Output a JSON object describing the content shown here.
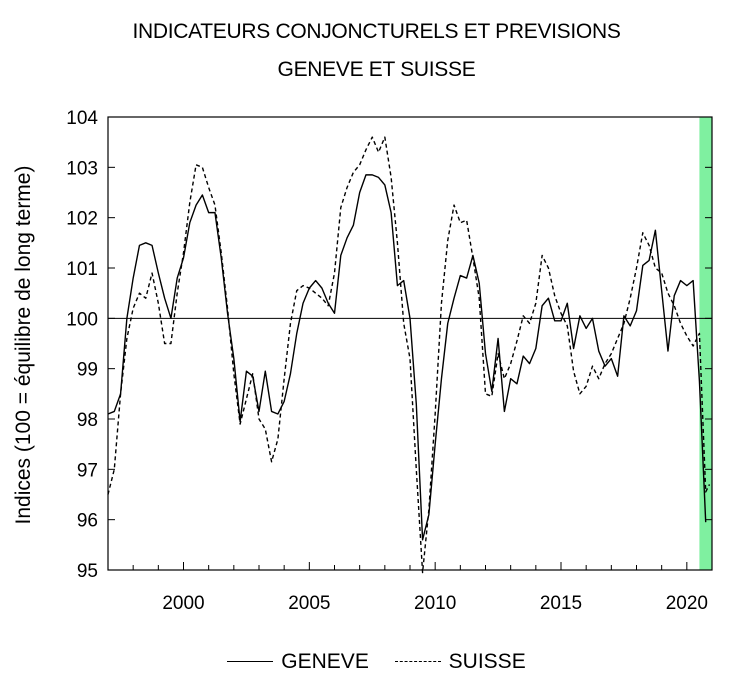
{
  "chart_data": {
    "type": "line",
    "title": "INDICATEURS CONJONCTURELS ET PREVISIONS",
    "subtitle": "GENEVE ET SUISSE",
    "xlabel": "",
    "ylabel": "Indices (100 = équilibre de long terme)",
    "xlim": [
      1997.0,
      2021.0
    ],
    "ylim": [
      95,
      104
    ],
    "yticks": [
      95,
      96,
      97,
      98,
      99,
      100,
      101,
      102,
      103,
      104
    ],
    "xticks": [
      2000,
      2005,
      2010,
      2015,
      2020
    ],
    "reference_line": 100,
    "highlight_band": {
      "from": 2020.5,
      "to": 2021.0,
      "color": "#7ff0a0"
    },
    "legend_position": "bottom",
    "grid": false,
    "series": [
      {
        "name": "GENEVE",
        "style": "solid",
        "points": [
          [
            1997.0,
            98.1
          ],
          [
            1997.25,
            98.15
          ],
          [
            1997.5,
            98.5
          ],
          [
            1997.75,
            100.0
          ],
          [
            1998.0,
            100.8
          ],
          [
            1998.25,
            101.45
          ],
          [
            1998.5,
            101.5
          ],
          [
            1998.75,
            101.45
          ],
          [
            1999.0,
            100.9
          ],
          [
            1999.25,
            100.4
          ],
          [
            1999.5,
            100.0
          ],
          [
            1999.75,
            100.8
          ],
          [
            2000.0,
            101.2
          ],
          [
            2000.25,
            101.9
          ],
          [
            2000.5,
            102.25
          ],
          [
            2000.75,
            102.45
          ],
          [
            2001.0,
            102.1
          ],
          [
            2001.25,
            102.1
          ],
          [
            2001.5,
            101.2
          ],
          [
            2001.75,
            100.1
          ],
          [
            2002.0,
            99.2
          ],
          [
            2002.25,
            97.95
          ],
          [
            2002.5,
            98.95
          ],
          [
            2002.75,
            98.85
          ],
          [
            2003.0,
            98.15
          ],
          [
            2003.25,
            98.95
          ],
          [
            2003.5,
            98.15
          ],
          [
            2003.75,
            98.1
          ],
          [
            2004.0,
            98.35
          ],
          [
            2004.25,
            98.9
          ],
          [
            2004.5,
            99.7
          ],
          [
            2004.75,
            100.3
          ],
          [
            2005.0,
            100.6
          ],
          [
            2005.25,
            100.75
          ],
          [
            2005.5,
            100.6
          ],
          [
            2005.75,
            100.3
          ],
          [
            2006.0,
            100.1
          ],
          [
            2006.25,
            101.25
          ],
          [
            2006.5,
            101.6
          ],
          [
            2006.75,
            101.85
          ],
          [
            2007.0,
            102.5
          ],
          [
            2007.25,
            102.85
          ],
          [
            2007.5,
            102.85
          ],
          [
            2007.75,
            102.8
          ],
          [
            2008.0,
            102.65
          ],
          [
            2008.25,
            102.1
          ],
          [
            2008.5,
            100.65
          ],
          [
            2008.75,
            100.75
          ],
          [
            2009.0,
            100.0
          ],
          [
            2009.25,
            98.3
          ],
          [
            2009.5,
            95.6
          ],
          [
            2009.75,
            96.1
          ],
          [
            2010.0,
            97.5
          ],
          [
            2010.25,
            98.8
          ],
          [
            2010.5,
            99.9
          ],
          [
            2010.75,
            100.4
          ],
          [
            2011.0,
            100.85
          ],
          [
            2011.25,
            100.8
          ],
          [
            2011.5,
            101.25
          ],
          [
            2011.75,
            100.7
          ],
          [
            2012.0,
            99.3
          ],
          [
            2012.25,
            98.55
          ],
          [
            2012.5,
            99.6
          ],
          [
            2012.75,
            98.15
          ],
          [
            2013.0,
            98.8
          ],
          [
            2013.25,
            98.7
          ],
          [
            2013.5,
            99.25
          ],
          [
            2013.75,
            99.1
          ],
          [
            2014.0,
            99.4
          ],
          [
            2014.25,
            100.25
          ],
          [
            2014.5,
            100.4
          ],
          [
            2014.75,
            99.95
          ],
          [
            2015.0,
            99.95
          ],
          [
            2015.25,
            100.3
          ],
          [
            2015.5,
            99.4
          ],
          [
            2015.75,
            100.05
          ],
          [
            2016.0,
            99.8
          ],
          [
            2016.25,
            100.0
          ],
          [
            2016.5,
            99.35
          ],
          [
            2016.75,
            99.05
          ],
          [
            2017.0,
            99.2
          ],
          [
            2017.25,
            98.85
          ],
          [
            2017.5,
            100.05
          ],
          [
            2017.75,
            99.85
          ],
          [
            2018.0,
            100.15
          ],
          [
            2018.25,
            101.05
          ],
          [
            2018.5,
            101.15
          ],
          [
            2018.75,
            101.75
          ],
          [
            2019.0,
            100.55
          ],
          [
            2019.25,
            99.35
          ],
          [
            2019.5,
            100.45
          ],
          [
            2019.75,
            100.75
          ],
          [
            2020.0,
            100.65
          ],
          [
            2020.25,
            100.75
          ],
          [
            2020.5,
            98.75
          ],
          [
            2020.75,
            95.95
          ]
        ]
      },
      {
        "name": "SUISSE",
        "style": "dashed",
        "points": [
          [
            1997.0,
            96.5
          ],
          [
            1997.25,
            97.0
          ],
          [
            1997.5,
            98.5
          ],
          [
            1997.75,
            99.6
          ],
          [
            1998.0,
            100.2
          ],
          [
            1998.25,
            100.5
          ],
          [
            1998.5,
            100.4
          ],
          [
            1998.75,
            100.9
          ],
          [
            1999.0,
            100.3
          ],
          [
            1999.25,
            99.5
          ],
          [
            1999.5,
            99.5
          ],
          [
            1999.75,
            100.5
          ],
          [
            2000.0,
            101.3
          ],
          [
            2000.25,
            102.3
          ],
          [
            2000.5,
            103.05
          ],
          [
            2000.75,
            103.0
          ],
          [
            2001.0,
            102.6
          ],
          [
            2001.25,
            102.25
          ],
          [
            2001.5,
            101.3
          ],
          [
            2001.75,
            100.2
          ],
          [
            2002.0,
            98.9
          ],
          [
            2002.25,
            97.9
          ],
          [
            2002.5,
            98.4
          ],
          [
            2002.75,
            98.9
          ],
          [
            2003.0,
            98.0
          ],
          [
            2003.25,
            97.8
          ],
          [
            2003.5,
            97.15
          ],
          [
            2003.75,
            97.6
          ],
          [
            2004.0,
            98.8
          ],
          [
            2004.25,
            99.9
          ],
          [
            2004.5,
            100.55
          ],
          [
            2004.75,
            100.65
          ],
          [
            2005.0,
            100.6
          ],
          [
            2005.25,
            100.5
          ],
          [
            2005.5,
            100.4
          ],
          [
            2005.75,
            100.25
          ],
          [
            2006.0,
            100.9
          ],
          [
            2006.25,
            102.2
          ],
          [
            2006.5,
            102.6
          ],
          [
            2006.75,
            102.9
          ],
          [
            2007.0,
            103.05
          ],
          [
            2007.25,
            103.35
          ],
          [
            2007.5,
            103.6
          ],
          [
            2007.75,
            103.3
          ],
          [
            2008.0,
            103.6
          ],
          [
            2008.25,
            102.8
          ],
          [
            2008.5,
            101.5
          ],
          [
            2008.75,
            99.9
          ],
          [
            2009.0,
            99.2
          ],
          [
            2009.25,
            97.0
          ],
          [
            2009.5,
            94.95
          ],
          [
            2009.75,
            96.2
          ],
          [
            2010.0,
            98.1
          ],
          [
            2010.25,
            100.3
          ],
          [
            2010.5,
            101.55
          ],
          [
            2010.75,
            102.25
          ],
          [
            2011.0,
            101.9
          ],
          [
            2011.25,
            101.95
          ],
          [
            2011.5,
            101.2
          ],
          [
            2011.75,
            100.4
          ],
          [
            2012.0,
            98.5
          ],
          [
            2012.25,
            98.45
          ],
          [
            2012.5,
            99.3
          ],
          [
            2012.75,
            98.8
          ],
          [
            2013.0,
            99.1
          ],
          [
            2013.25,
            99.55
          ],
          [
            2013.5,
            100.05
          ],
          [
            2013.75,
            99.9
          ],
          [
            2014.0,
            100.3
          ],
          [
            2014.25,
            101.25
          ],
          [
            2014.5,
            101.0
          ],
          [
            2014.75,
            100.45
          ],
          [
            2015.0,
            100.1
          ],
          [
            2015.25,
            99.85
          ],
          [
            2015.5,
            98.95
          ],
          [
            2015.75,
            98.5
          ],
          [
            2016.0,
            98.65
          ],
          [
            2016.25,
            99.05
          ],
          [
            2016.5,
            98.8
          ],
          [
            2016.75,
            99.1
          ],
          [
            2017.0,
            99.3
          ],
          [
            2017.25,
            99.6
          ],
          [
            2017.5,
            99.9
          ],
          [
            2017.75,
            100.4
          ],
          [
            2018.0,
            101.0
          ],
          [
            2018.25,
            101.7
          ],
          [
            2018.5,
            101.45
          ],
          [
            2018.75,
            101.0
          ],
          [
            2019.0,
            100.9
          ],
          [
            2019.25,
            100.5
          ],
          [
            2019.5,
            100.25
          ],
          [
            2019.75,
            99.9
          ],
          [
            2020.0,
            99.65
          ],
          [
            2020.25,
            99.45
          ],
          [
            2020.5,
            99.7
          ],
          [
            2020.75,
            96.55
          ],
          [
            2020.9,
            96.7
          ]
        ]
      }
    ]
  }
}
